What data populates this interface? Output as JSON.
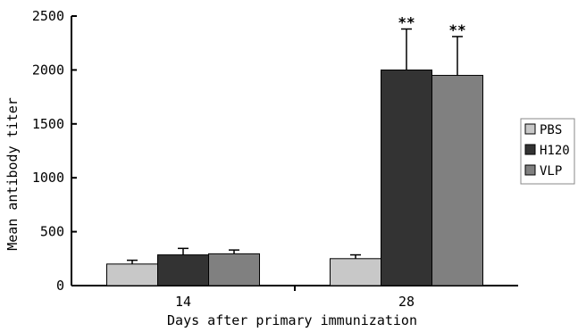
{
  "chart_data": {
    "type": "bar",
    "title": "",
    "xlabel": "Days after primary immunization",
    "ylabel": "Mean antibody titer",
    "categories": [
      "14",
      "28"
    ],
    "ylim": [
      0,
      2500
    ],
    "yticks": [
      0,
      500,
      1000,
      1500,
      2000,
      2500
    ],
    "grid": false,
    "legend": "right",
    "series": [
      {
        "name": "PBS",
        "color": "#c8c8c8",
        "values": [
          200,
          250
        ],
        "errors": [
          35,
          35
        ]
      },
      {
        "name": "H120",
        "color": "#333333",
        "values": [
          285,
          2000
        ],
        "errors": [
          60,
          380
        ]
      },
      {
        "name": "VLP",
        "color": "#808080",
        "values": [
          295,
          1950
        ],
        "errors": [
          35,
          360
        ]
      }
    ],
    "annotations": [
      {
        "category": "28",
        "series": "H120",
        "text": "**"
      },
      {
        "category": "28",
        "series": "VLP",
        "text": "**"
      }
    ]
  }
}
